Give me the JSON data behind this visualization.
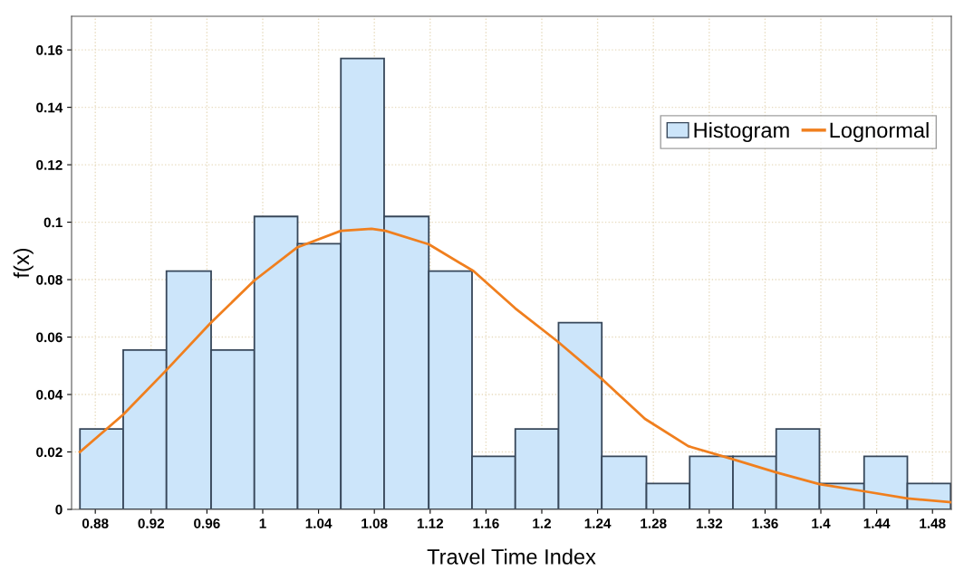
{
  "chart_data": {
    "type": "histogram",
    "xlabel": "Travel Time Index",
    "ylabel": "f(x)",
    "bins": [
      0.869,
      0.9,
      0.931,
      0.963,
      0.994,
      1.025,
      1.056,
      1.087,
      1.119,
      1.15,
      1.181,
      1.212,
      1.243,
      1.275,
      1.306,
      1.337,
      1.368,
      1.399,
      1.431,
      1.462,
      1.493
    ],
    "series": [
      {
        "name": "Histogram",
        "color": "#cce5fa",
        "values": [
          0.028,
          0.0555,
          0.083,
          0.0555,
          0.102,
          0.0925,
          0.157,
          0.102,
          0.083,
          0.0185,
          0.028,
          0.065,
          0.0185,
          0.009,
          0.0185,
          0.0185,
          0.028,
          0.009,
          0.0185,
          0.009
        ]
      },
      {
        "name": "Lognormal",
        "type": "line",
        "color": "#f07f1e",
        "x": [
          0.869,
          0.9,
          0.93,
          0.962,
          0.994,
          1.025,
          1.056,
          1.078,
          1.088,
          1.119,
          1.151,
          1.181,
          1.211,
          1.244,
          1.274,
          1.305,
          1.336,
          1.368,
          1.399,
          1.431,
          1.462,
          1.493
        ],
        "values": [
          0.02,
          0.033,
          0.048,
          0.0646,
          0.0797,
          0.0913,
          0.097,
          0.0977,
          0.097,
          0.0923,
          0.083,
          0.07,
          0.0586,
          0.045,
          0.0315,
          0.022,
          0.0176,
          0.0129,
          0.0088,
          0.0063,
          0.0038,
          0.0025
        ]
      }
    ],
    "xlim": [
      0.863,
      1.4935
    ],
    "ylim": [
      0,
      0.1717
    ],
    "xticks": [
      0.88,
      0.92,
      0.96,
      1,
      1.04,
      1.08,
      1.12,
      1.16,
      1.2,
      1.24,
      1.28,
      1.32,
      1.36,
      1.4,
      1.44,
      1.48
    ],
    "yticks": [
      0,
      0.02,
      0.04,
      0.06,
      0.08,
      0.1,
      0.12,
      0.14,
      0.16
    ],
    "grid": true,
    "legend": "top right"
  }
}
